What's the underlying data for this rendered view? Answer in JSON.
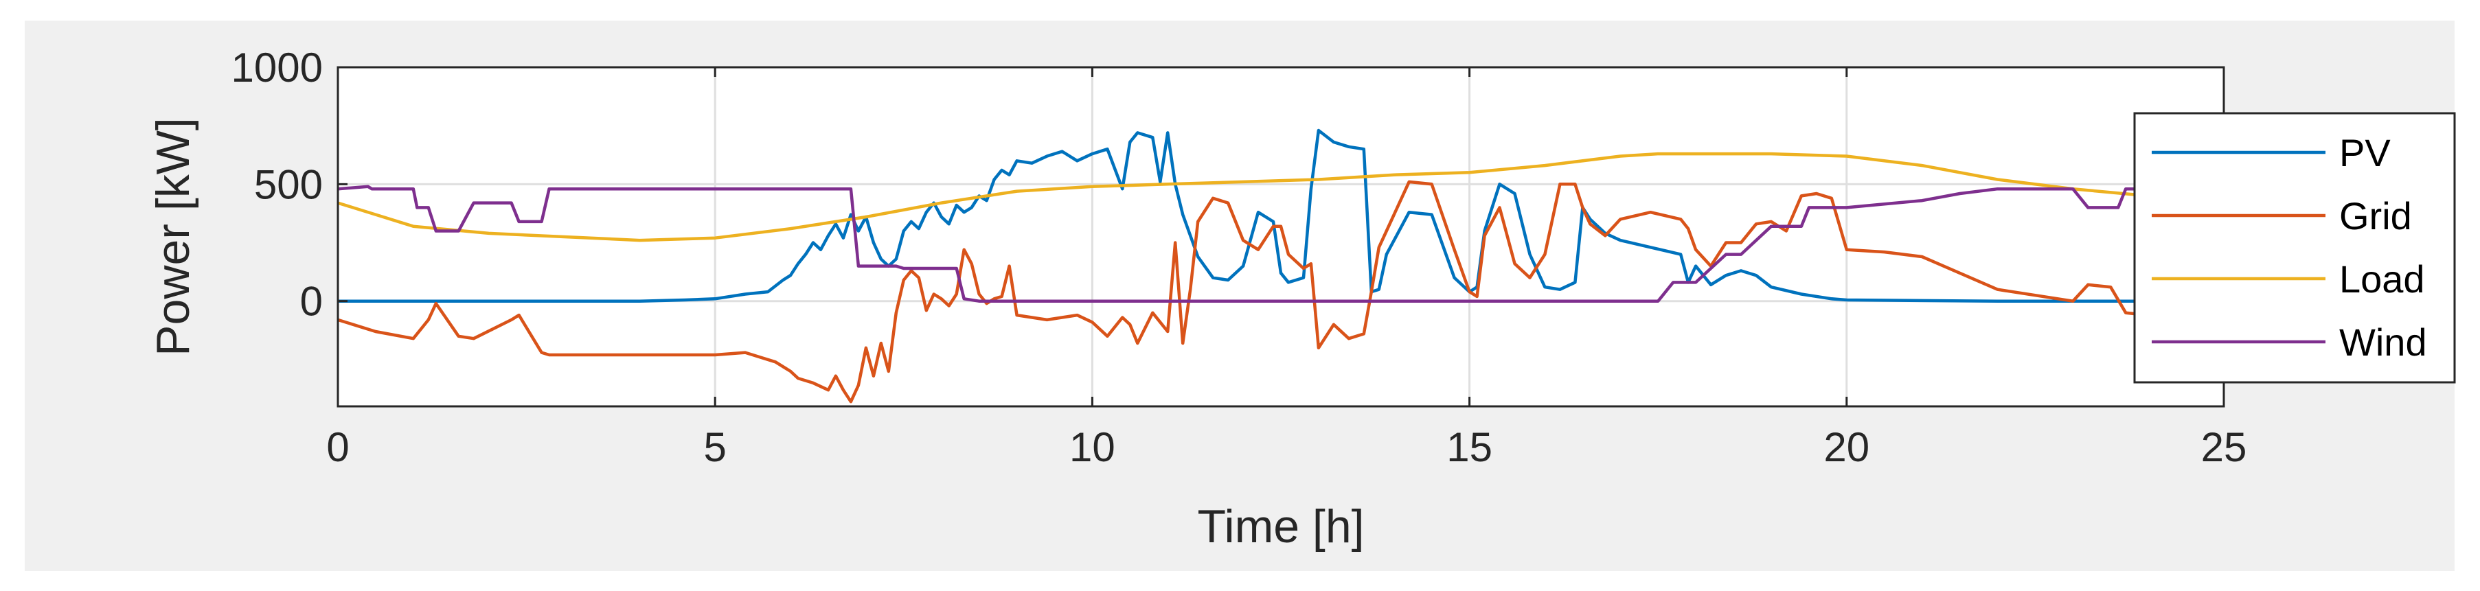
{
  "chart_data": {
    "type": "line",
    "title": "",
    "xlabel": "Time [h]",
    "ylabel": "Power [kW]",
    "xlim": [
      0,
      25
    ],
    "ylim": [
      -450,
      1000
    ],
    "xticks": [
      0,
      5,
      10,
      15,
      20,
      25
    ],
    "xtick_labels": [
      "0",
      "5",
      "10",
      "15",
      "20",
      "25"
    ],
    "yticks": [
      0,
      500,
      1000
    ],
    "ytick_labels": [
      "0",
      "500",
      "1000"
    ],
    "grid": true,
    "legend_position": "right-outside",
    "series": [
      {
        "name": "PV",
        "color": "#0072BD",
        "x": [
          0,
          4.0,
          4.6,
          5.0,
          5.4,
          5.7,
          5.9,
          6.0,
          6.1,
          6.2,
          6.3,
          6.4,
          6.5,
          6.6,
          6.7,
          6.8,
          6.9,
          7.0,
          7.1,
          7.2,
          7.3,
          7.4,
          7.5,
          7.6,
          7.7,
          7.8,
          7.9,
          8.0,
          8.1,
          8.2,
          8.3,
          8.4,
          8.5,
          8.6,
          8.7,
          8.8,
          8.9,
          9.0,
          9.2,
          9.4,
          9.6,
          9.8,
          10.0,
          10.2,
          10.4,
          10.5,
          10.6,
          10.8,
          10.9,
          11.0,
          11.1,
          11.2,
          11.3,
          11.4,
          11.6,
          11.8,
          12.0,
          12.2,
          12.4,
          12.5,
          12.6,
          12.8,
          12.9,
          13.0,
          13.2,
          13.4,
          13.6,
          13.7,
          13.8,
          13.9,
          14.2,
          14.5,
          14.8,
          15.0,
          15.1,
          15.2,
          15.4,
          15.6,
          15.8,
          16.0,
          16.2,
          16.4,
          16.5,
          16.6,
          16.8,
          17.0,
          17.4,
          17.8,
          17.9,
          18.0,
          18.2,
          18.4,
          18.6,
          18.8,
          19.0,
          19.4,
          19.8,
          20.0,
          22.0,
          25.0
        ],
        "values": [
          0,
          0,
          5,
          10,
          30,
          40,
          90,
          110,
          160,
          200,
          250,
          220,
          280,
          330,
          270,
          370,
          300,
          360,
          250,
          180,
          150,
          180,
          300,
          340,
          310,
          380,
          420,
          360,
          330,
          410,
          380,
          400,
          450,
          430,
          520,
          560,
          540,
          600,
          590,
          620,
          640,
          600,
          630,
          650,
          480,
          680,
          720,
          700,
          510,
          720,
          500,
          370,
          280,
          190,
          100,
          90,
          150,
          380,
          340,
          120,
          80,
          100,
          480,
          730,
          680,
          660,
          650,
          40,
          50,
          200,
          380,
          370,
          100,
          40,
          60,
          300,
          500,
          460,
          200,
          60,
          50,
          80,
          400,
          350,
          290,
          260,
          230,
          200,
          80,
          150,
          70,
          110,
          130,
          110,
          60,
          30,
          10,
          5,
          0,
          0
        ]
      },
      {
        "name": "Grid",
        "color": "#D95319",
        "x": [
          0,
          0.5,
          1.0,
          1.2,
          1.3,
          1.6,
          1.8,
          2.3,
          2.4,
          2.7,
          2.8,
          4.0,
          5.0,
          5.4,
          5.6,
          5.8,
          6.0,
          6.1,
          6.3,
          6.5,
          6.6,
          6.7,
          6.8,
          6.9,
          7.0,
          7.1,
          7.2,
          7.3,
          7.4,
          7.5,
          7.6,
          7.7,
          7.8,
          7.9,
          8.0,
          8.1,
          8.2,
          8.3,
          8.4,
          8.5,
          8.6,
          8.7,
          8.8,
          8.9,
          9.0,
          9.4,
          9.8,
          10.0,
          10.2,
          10.4,
          10.5,
          10.6,
          10.8,
          11.0,
          11.1,
          11.2,
          11.3,
          11.4,
          11.6,
          11.8,
          12.0,
          12.2,
          12.4,
          12.5,
          12.6,
          12.8,
          12.9,
          13.0,
          13.2,
          13.4,
          13.6,
          13.7,
          13.8,
          13.9,
          14.2,
          14.5,
          14.8,
          15.0,
          15.1,
          15.2,
          15.4,
          15.6,
          15.8,
          16.0,
          16.2,
          16.4,
          16.5,
          16.6,
          16.8,
          17.0,
          17.4,
          17.8,
          17.9,
          18.0,
          18.2,
          18.4,
          18.6,
          18.8,
          19.0,
          19.2,
          19.4,
          19.6,
          19.8,
          20.0,
          20.5,
          21.0,
          22.0,
          23.0,
          23.2,
          23.5,
          23.7,
          24.0
        ],
        "values": [
          -80,
          -130,
          -160,
          -80,
          -10,
          -150,
          -160,
          -80,
          -60,
          -220,
          -230,
          -230,
          -230,
          -220,
          -240,
          -260,
          -300,
          -330,
          -350,
          -380,
          -320,
          -380,
          -430,
          -360,
          -200,
          -320,
          -180,
          -300,
          -50,
          90,
          130,
          100,
          -40,
          30,
          10,
          -20,
          30,
          220,
          160,
          30,
          -10,
          10,
          20,
          150,
          -60,
          -80,
          -60,
          -90,
          -150,
          -70,
          -100,
          -180,
          -50,
          -130,
          250,
          -180,
          50,
          340,
          440,
          420,
          260,
          220,
          320,
          320,
          200,
          140,
          160,
          -200,
          -100,
          -160,
          -140,
          40,
          230,
          300,
          510,
          500,
          220,
          40,
          20,
          280,
          400,
          160,
          100,
          200,
          500,
          500,
          400,
          330,
          280,
          350,
          380,
          350,
          310,
          220,
          150,
          250,
          250,
          330,
          340,
          300,
          450,
          460,
          440,
          220,
          210,
          190,
          50,
          0,
          70,
          60,
          -50,
          -60
        ]
      },
      {
        "name": "Load",
        "color": "#EDB120",
        "x": [
          0,
          0.5,
          1.0,
          2.0,
          3.0,
          4.0,
          5.0,
          6.0,
          7.0,
          8.0,
          9.0,
          10.0,
          11.0,
          12.0,
          13.0,
          14.0,
          15.0,
          16.0,
          17.0,
          17.5,
          18.0,
          19.0,
          20.0,
          21.0,
          22.0,
          23.0,
          24.0,
          25.0
        ],
        "values": [
          420,
          370,
          320,
          290,
          275,
          260,
          270,
          310,
          360,
          420,
          470,
          490,
          500,
          510,
          520,
          540,
          550,
          580,
          620,
          630,
          630,
          630,
          620,
          580,
          520,
          480,
          450,
          440
        ]
      },
      {
        "name": "Wind",
        "color": "#7E2F8E",
        "x": [
          0,
          0.4,
          0.45,
          1.0,
          1.05,
          1.2,
          1.3,
          1.6,
          1.8,
          2.3,
          2.4,
          2.7,
          2.8,
          5.0,
          6.8,
          6.9,
          7.4,
          7.5,
          8.2,
          8.3,
          8.5,
          10.0,
          15.0,
          17.5,
          17.7,
          18.0,
          18.4,
          18.6,
          19.0,
          19.4,
          19.5,
          20.0,
          21.0,
          21.5,
          22.0,
          22.5,
          23.0,
          23.2,
          23.6,
          23.7,
          24.0
        ],
        "values": [
          480,
          490,
          480,
          480,
          400,
          400,
          300,
          300,
          420,
          420,
          340,
          340,
          480,
          480,
          480,
          150,
          150,
          140,
          140,
          10,
          0,
          0,
          0,
          0,
          80,
          80,
          200,
          200,
          320,
          320,
          400,
          400,
          430,
          460,
          480,
          480,
          480,
          400,
          400,
          480,
          480
        ]
      }
    ]
  }
}
